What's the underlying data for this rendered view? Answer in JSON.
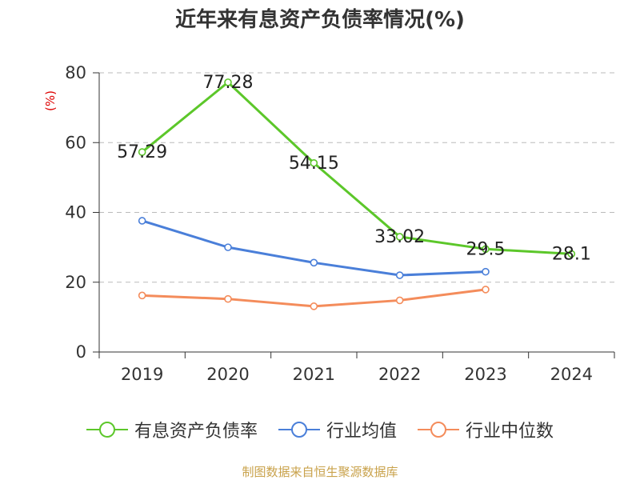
{
  "colors": {
    "axis": "#333333",
    "grid": "#bbbbbb",
    "ylabel": "#dd0000",
    "source": "#c9a24b"
  },
  "chart_data": {
    "type": "line",
    "title": "近年来有息资产负债率情况(%)",
    "ylabel": "(%)",
    "xlabel": "",
    "ylim": [
      0,
      80
    ],
    "yticks": [
      0,
      20,
      40,
      60,
      80
    ],
    "grid": true,
    "legend_position": "bottom",
    "categories": [
      "2019",
      "2020",
      "2021",
      "2022",
      "2023",
      "2024"
    ],
    "series": [
      {
        "name": "有息资产负债率",
        "color": "#5cc72a",
        "values": [
          57.29,
          77.28,
          54.15,
          33.02,
          29.5,
          28.1
        ],
        "labels": [
          "57.29",
          "77.28",
          "54.15",
          "33.02",
          "29.5",
          "28.1"
        ]
      },
      {
        "name": "行业均值",
        "color": "#4a7fd9",
        "values": [
          37.6,
          30.0,
          25.6,
          22.0,
          23.0,
          null
        ]
      },
      {
        "name": "行业中位数",
        "color": "#f48c5b",
        "values": [
          16.2,
          15.2,
          13.1,
          14.8,
          17.9,
          null
        ]
      }
    ]
  },
  "source_note": "制图数据来自恒生聚源数据库"
}
